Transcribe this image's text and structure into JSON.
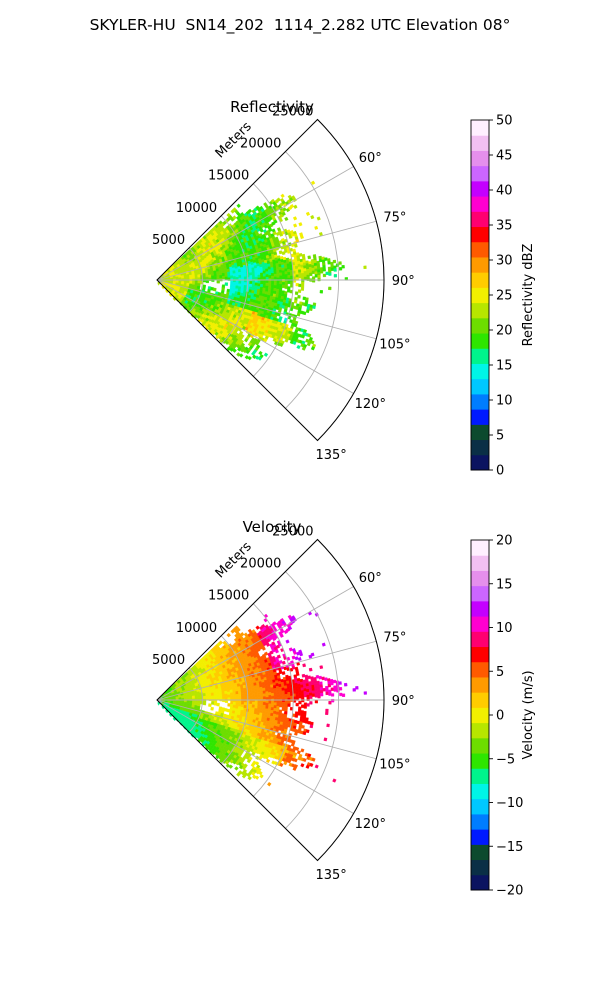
{
  "figure": {
    "suptitle": "SKYLER-HU  SN14_202  1114_2.282 UTC Elevation 08°"
  },
  "chart_data": [
    {
      "type": "polar-sector",
      "title": "Reflectivity",
      "radial_label": "Meters",
      "theta_range_deg": [
        45,
        135
      ],
      "radial_ticks": [
        5000,
        10000,
        15000,
        20000,
        25000
      ],
      "radial_tick_labels": [
        "5000",
        "10000",
        "15000",
        "20000",
        "25000"
      ],
      "r_max": 25000,
      "angle_ticks_deg": [
        60,
        75,
        90,
        105,
        120,
        135
      ],
      "angle_tick_labels": [
        "60°",
        "75°",
        "90°",
        "105°",
        "120°",
        "135°"
      ],
      "grid": true,
      "colorbar": {
        "label": "Reflectivity dBZ",
        "vmin": 0,
        "vmax": 50,
        "ticks": [
          0,
          5,
          10,
          15,
          20,
          25,
          30,
          35,
          40,
          45,
          50
        ],
        "tick_labels": [
          "0",
          "5",
          "10",
          "15",
          "20",
          "25",
          "30",
          "35",
          "40",
          "45",
          "50"
        ],
        "stops": [
          [
            0,
            "#0b1460"
          ],
          [
            0.06,
            "#0a2f46"
          ],
          [
            0.1,
            "#0c4a2e"
          ],
          [
            0.14,
            "#0019ff"
          ],
          [
            0.18,
            "#007dff"
          ],
          [
            0.23,
            "#00c8ff"
          ],
          [
            0.28,
            "#00f5e6"
          ],
          [
            0.33,
            "#00f58c"
          ],
          [
            0.38,
            "#2ee600"
          ],
          [
            0.43,
            "#6ddd00"
          ],
          [
            0.48,
            "#b7e600"
          ],
          [
            0.53,
            "#f2ef00"
          ],
          [
            0.58,
            "#ffcc00"
          ],
          [
            0.63,
            "#ff9a00"
          ],
          [
            0.68,
            "#ff5a00"
          ],
          [
            0.72,
            "#ff0000"
          ],
          [
            0.77,
            "#ff0070"
          ],
          [
            0.8,
            "#ff00d0"
          ],
          [
            0.84,
            "#c400ff"
          ],
          [
            0.88,
            "#cc66ff"
          ],
          [
            0.92,
            "#e58fec"
          ],
          [
            0.96,
            "#f2c0f2"
          ],
          [
            1,
            "#fff0ff"
          ]
        ]
      }
    },
    {
      "type": "polar-sector",
      "title": "Velocity",
      "radial_label": "Meters",
      "theta_range_deg": [
        45,
        135
      ],
      "radial_ticks": [
        5000,
        10000,
        15000,
        20000,
        25000
      ],
      "radial_tick_labels": [
        "5000",
        "10000",
        "15000",
        "20000",
        "25000"
      ],
      "r_max": 25000,
      "angle_ticks_deg": [
        60,
        75,
        90,
        105,
        120,
        135
      ],
      "angle_tick_labels": [
        "60°",
        "75°",
        "90°",
        "105°",
        "120°",
        "135°"
      ],
      "grid": true,
      "colorbar": {
        "label": "Velocity (m/s)",
        "vmin": -20,
        "vmax": 20,
        "ticks": [
          -20,
          -15,
          -10,
          -5,
          0,
          5,
          10,
          15,
          20
        ],
        "tick_labels": [
          "−20",
          "−15",
          "−10",
          "−5",
          "0",
          "5",
          "10",
          "15",
          "20"
        ],
        "stops": [
          [
            0,
            "#0b1460"
          ],
          [
            0.06,
            "#0a2f46"
          ],
          [
            0.1,
            "#0c4a2e"
          ],
          [
            0.14,
            "#0019ff"
          ],
          [
            0.18,
            "#007dff"
          ],
          [
            0.23,
            "#00c8ff"
          ],
          [
            0.28,
            "#00f5e6"
          ],
          [
            0.33,
            "#00f58c"
          ],
          [
            0.38,
            "#2ee600"
          ],
          [
            0.43,
            "#6ddd00"
          ],
          [
            0.48,
            "#b7e600"
          ],
          [
            0.53,
            "#f2ef00"
          ],
          [
            0.58,
            "#ffcc00"
          ],
          [
            0.63,
            "#ff9a00"
          ],
          [
            0.68,
            "#ff5a00"
          ],
          [
            0.72,
            "#ff0000"
          ],
          [
            0.77,
            "#ff0070"
          ],
          [
            0.8,
            "#ff00d0"
          ],
          [
            0.84,
            "#c400ff"
          ],
          [
            0.88,
            "#cc66ff"
          ],
          [
            0.92,
            "#e58fec"
          ],
          [
            0.96,
            "#f2c0f2"
          ],
          [
            1,
            "#fff0ff"
          ]
        ]
      }
    }
  ]
}
